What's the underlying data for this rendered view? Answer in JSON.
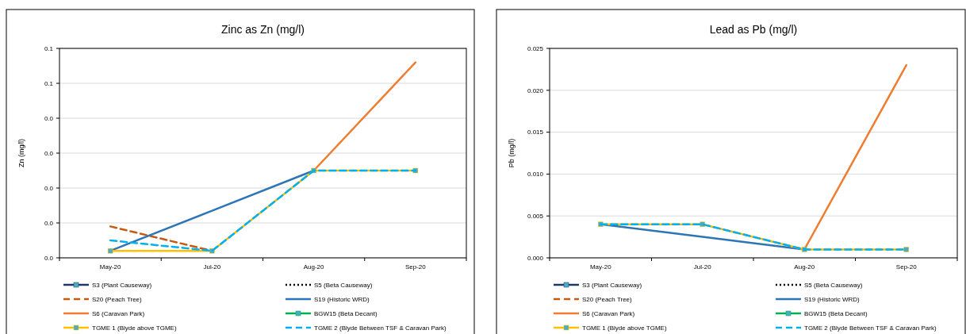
{
  "chart_data": [
    {
      "type": "line",
      "title": "Zinc as Zn (mg/l)",
      "ylabel": "Zn (mg/l)",
      "categories": [
        "May-20",
        "Jul-20",
        "Aug-20",
        "Sep-20"
      ],
      "ylim": [
        0,
        0.06
      ],
      "yticks": [
        {
          "value": 0,
          "label": "0.0"
        },
        {
          "value": 0.01,
          "label": "0.0"
        },
        {
          "value": 0.02,
          "label": "0.0"
        },
        {
          "value": 0.03,
          "label": "0.0"
        },
        {
          "value": 0.04,
          "label": "0.0"
        },
        {
          "value": 0.05,
          "label": "0.1"
        },
        {
          "value": 0.06,
          "label": "0.1"
        }
      ],
      "grid": "y",
      "legend": "bottom",
      "series": [
        {
          "name": "S3 (Plant Causeway)",
          "color": "#1f3864",
          "line_style": "solid",
          "marker": "square",
          "values": [
            null,
            null,
            null,
            null
          ]
        },
        {
          "name": "S5 (Beta Causeway)",
          "color": "#000000",
          "line_style": "dotted",
          "marker": "none",
          "values": [
            null,
            null,
            null,
            null
          ]
        },
        {
          "name": "S20 (Peach Tree)",
          "color": "#c55a11",
          "line_style": "dashed",
          "marker": "none",
          "values": [
            0.009,
            0.002,
            null,
            null
          ]
        },
        {
          "name": "S19 (Historic WRD)",
          "color": "#2e75b6",
          "line_style": "solid",
          "marker": "none",
          "values": [
            0.002,
            0.0135,
            0.025,
            null
          ]
        },
        {
          "name": "S6 (Caravan Park)",
          "color": "#ed7d31",
          "line_style": "solid",
          "marker": "none",
          "values": [
            null,
            null,
            0.025,
            0.056
          ]
        },
        {
          "name": "BGW15 (Beta Decant)",
          "color": "#00b050",
          "line_style": "solid",
          "marker": "square",
          "values": [
            null,
            null,
            null,
            null
          ]
        },
        {
          "name": "TGME 1 (Blyde above TGME)",
          "color": "#ffc000",
          "line_style": "solid",
          "marker": "square",
          "values": [
            0.002,
            0.002,
            0.025,
            0.025
          ]
        },
        {
          "name": "TGME 2 (Blyde Between TSF & Caravan Park)",
          "color": "#00b0f0",
          "line_style": "dashed",
          "marker": "none",
          "values": [
            0.005,
            0.002,
            0.025,
            0.025
          ]
        }
      ]
    },
    {
      "type": "line",
      "title": "Lead as Pb (mg/l)",
      "ylabel": "Pb (mg/l)",
      "categories": [
        "May-20",
        "Jul-20",
        "Aug-20",
        "Sep-20"
      ],
      "ylim": [
        0,
        0.025
      ],
      "yticks": [
        {
          "value": 0,
          "label": "0.000"
        },
        {
          "value": 0.005,
          "label": "0.005"
        },
        {
          "value": 0.01,
          "label": "0.010"
        },
        {
          "value": 0.015,
          "label": "0.015"
        },
        {
          "value": 0.02,
          "label": "0.020"
        },
        {
          "value": 0.025,
          "label": "0.025"
        }
      ],
      "grid": "y",
      "legend": "bottom",
      "series": [
        {
          "name": "S3 (Plant Causeway)",
          "color": "#1f3864",
          "line_style": "solid",
          "marker": "square",
          "values": [
            null,
            null,
            null,
            null
          ]
        },
        {
          "name": "S5 (Beta Causeway)",
          "color": "#000000",
          "line_style": "dotted",
          "marker": "none",
          "values": [
            null,
            null,
            null,
            null
          ]
        },
        {
          "name": "S20 (Peach Tree)",
          "color": "#c55a11",
          "line_style": "dashed",
          "marker": "none",
          "values": [
            null,
            null,
            null,
            null
          ]
        },
        {
          "name": "S19 (Historic WRD)",
          "color": "#2e75b6",
          "line_style": "solid",
          "marker": "none",
          "values": [
            0.004,
            0.0025,
            0.001,
            null
          ]
        },
        {
          "name": "S6 (Caravan Park)",
          "color": "#ed7d31",
          "line_style": "solid",
          "marker": "none",
          "values": [
            null,
            null,
            0.001,
            0.023
          ]
        },
        {
          "name": "BGW15 (Beta Decant)",
          "color": "#00b050",
          "line_style": "solid",
          "marker": "square",
          "values": [
            null,
            null,
            null,
            null
          ]
        },
        {
          "name": "TGME 1 (Blyde above TGME)",
          "color": "#ffc000",
          "line_style": "solid",
          "marker": "square",
          "values": [
            0.004,
            0.004,
            0.001,
            0.001
          ]
        },
        {
          "name": "TGME 2 (Blyde Between TSF & Caravan Park)",
          "color": "#00b0f0",
          "line_style": "dashed",
          "marker": "none",
          "values": [
            0.004,
            0.004,
            0.001,
            0.001
          ]
        }
      ]
    }
  ]
}
